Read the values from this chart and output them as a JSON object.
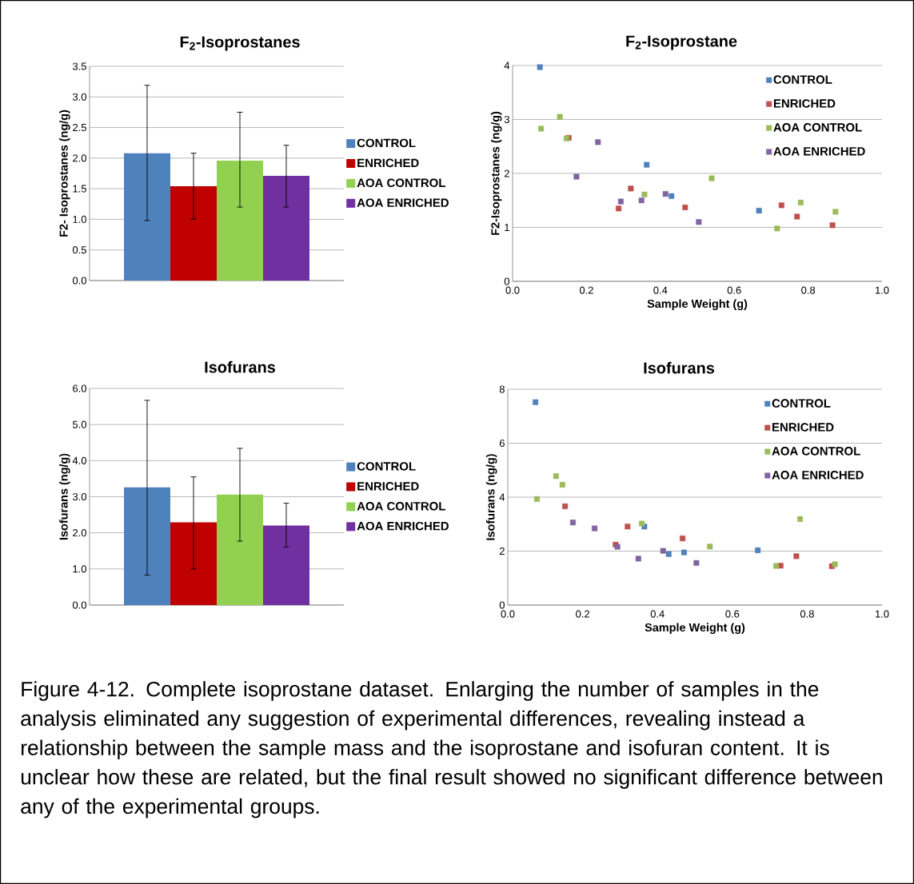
{
  "chart_data": [
    {
      "type": "bar",
      "title": "F$_{2}$-Isoprostanes",
      "ylabel": "F2- Isoprostanes (ng/g)",
      "categories": [
        null
      ],
      "ylim": [
        0,
        3.5
      ],
      "yticks": [
        {
          "value": 0,
          "label": "0.0"
        },
        {
          "value": 0.5,
          "label": "0.5"
        },
        {
          "value": 1,
          "label": "1.0"
        },
        {
          "value": 1.5,
          "label": "1.5"
        },
        {
          "value": 2,
          "label": "2.0"
        },
        {
          "value": 2.5,
          "label": "2.5"
        },
        {
          "value": 3,
          "label": "3.0"
        },
        {
          "value": 3.5,
          "label": "3.5"
        }
      ],
      "grid": "y",
      "legend": "right",
      "series": [
        {
          "name": "CONTROL",
          "color": "#4f81bd",
          "values": [
            2.08
          ],
          "errors": [
            [
              0.98,
              3.19
            ]
          ]
        },
        {
          "name": "ENRICHED",
          "color": "#c00000",
          "values": [
            1.54
          ],
          "errors": [
            [
              1.0,
              2.08
            ]
          ]
        },
        {
          "name": "AOA CONTROL",
          "color": "#92d050",
          "values": [
            1.96
          ],
          "errors": [
            [
              1.2,
              2.75
            ]
          ]
        },
        {
          "name": "AOA ENRICHED",
          "color": "#7030a0",
          "values": [
            1.71
          ],
          "errors": [
            [
              1.2,
              2.21
            ]
          ]
        }
      ]
    },
    {
      "type": "scatter",
      "title": "F$_{2}$-Isoprostane",
      "xlabel": "Sample Weight (g)",
      "ylabel": "F2-Isoprostanes (ng/g)",
      "xlim": [
        0,
        1
      ],
      "xticks": [
        {
          "value": 0,
          "label": "0.0"
        },
        {
          "value": 0.2,
          "label": "0.2"
        },
        {
          "value": 0.4,
          "label": "0.4"
        },
        {
          "value": 0.6,
          "label": "0.6"
        },
        {
          "value": 0.8,
          "label": "0.8"
        },
        {
          "value": 1,
          "label": "1.0"
        }
      ],
      "ylim": [
        0,
        4
      ],
      "yticks": [
        0,
        1,
        2,
        3,
        4
      ],
      "grid": "y",
      "legend": "top right",
      "marker": "square",
      "series": [
        {
          "name": "CONTROL",
          "color": "#4f81bd",
          "x": [
            0.074,
            0.363,
            0.43,
            0.47,
            0.667
          ],
          "values": [
            3.97,
            2.16,
            1.58,
            null,
            1.31
          ]
        },
        {
          "name": "ENRICHED",
          "color": "#c0504d",
          "x": [
            0.152,
            0.287,
            0.32,
            0.467,
            0.728,
            0.77,
            0.866
          ],
          "values": [
            2.66,
            1.35,
            1.72,
            1.37,
            1.41,
            1.2,
            1.04
          ]
        },
        {
          "name": "AOA CONTROL",
          "color": "#9bbb59",
          "x": [
            0.077,
            0.128,
            0.146,
            0.357,
            0.539,
            0.716,
            0.78,
            0.874
          ],
          "values": [
            2.83,
            3.05,
            2.65,
            1.61,
            1.91,
            0.98,
            1.46,
            1.29
          ]
        },
        {
          "name": "AOA ENRICHED",
          "color": "#8064a2",
          "x": [
            0.173,
            0.231,
            0.293,
            0.349,
            0.414,
            0.504
          ],
          "values": [
            1.94,
            2.58,
            1.48,
            1.5,
            1.62,
            1.1
          ]
        }
      ]
    },
    {
      "type": "bar",
      "title": "Isofurans",
      "ylabel": "Isofurans (ng/g)",
      "categories": [
        null
      ],
      "ylim": [
        0,
        6
      ],
      "yticks": [
        {
          "value": 0,
          "label": "0.0"
        },
        {
          "value": 1,
          "label": "1.0"
        },
        {
          "value": 2,
          "label": "2.0"
        },
        {
          "value": 3,
          "label": "3.0"
        },
        {
          "value": 4,
          "label": "4.0"
        },
        {
          "value": 5,
          "label": "5.0"
        },
        {
          "value": 6,
          "label": "6.0"
        }
      ],
      "grid": "y",
      "legend": "right",
      "series": [
        {
          "name": "CONTROL",
          "color": "#4f81bd",
          "values": [
            3.26
          ],
          "errors": [
            [
              0.83,
              5.67
            ]
          ]
        },
        {
          "name": "ENRICHED",
          "color": "#c00000",
          "values": [
            2.29
          ],
          "errors": [
            [
              1.0,
              3.55
            ]
          ]
        },
        {
          "name": "AOA CONTROL",
          "color": "#92d050",
          "values": [
            3.06
          ],
          "errors": [
            [
              1.77,
              4.34
            ]
          ]
        },
        {
          "name": "AOA ENRICHED",
          "color": "#7030a0",
          "values": [
            2.2
          ],
          "errors": [
            [
              1.61,
              2.82
            ]
          ]
        }
      ]
    },
    {
      "type": "scatter",
      "title": "Isofurans",
      "xlabel": "Sample Weight (g)",
      "ylabel": "Isofurans (ng/g)",
      "xlim": [
        0,
        1
      ],
      "xticks": [
        {
          "value": 0,
          "label": "0.0"
        },
        {
          "value": 0.2,
          "label": "0.2"
        },
        {
          "value": 0.4,
          "label": "0.4"
        },
        {
          "value": 0.6,
          "label": "0.6"
        },
        {
          "value": 0.8,
          "label": "0.8"
        },
        {
          "value": 1,
          "label": "1.0"
        }
      ],
      "ylim": [
        0,
        8
      ],
      "yticks": [
        0,
        2,
        4,
        6,
        8
      ],
      "grid": "y",
      "legend": "top right",
      "marker": "square",
      "series": [
        {
          "name": "CONTROL",
          "color": "#4f81bd",
          "x": [
            0.074,
            0.365,
            0.43,
            0.471,
            0.668
          ],
          "values": [
            7.52,
            2.91,
            1.89,
            1.95,
            2.03
          ]
        },
        {
          "name": "ENRICHED",
          "color": "#c0504d",
          "x": [
            0.153,
            0.288,
            0.32,
            0.467,
            0.729,
            0.771,
            0.866
          ],
          "values": [
            3.66,
            2.24,
            2.91,
            2.47,
            1.46,
            1.81,
            1.44
          ]
        },
        {
          "name": "AOA CONTROL",
          "color": "#9bbb59",
          "x": [
            0.078,
            0.129,
            0.146,
            0.358,
            0.54,
            0.717,
            0.781,
            0.874
          ],
          "values": [
            3.93,
            4.78,
            4.46,
            3.02,
            2.17,
            1.45,
            3.19,
            1.51
          ]
        },
        {
          "name": "AOA ENRICHED",
          "color": "#8064a2",
          "x": [
            0.174,
            0.232,
            0.293,
            0.349,
            0.415,
            0.504
          ],
          "values": [
            3.06,
            2.84,
            2.16,
            1.72,
            2.01,
            1.56
          ]
        }
      ],
      "annotations": [
        "Figure 4-12. Complete isoprostane dataset. Enlarging the number of samples in the analysis eliminated any suggestion of experimental differences, revealing instead a relationship between the sample mass and the isoprostane and isofuran content. It is unclear how these are related, but the final result showed no significant difference between any of the experimental groups."
      ]
    }
  ]
}
